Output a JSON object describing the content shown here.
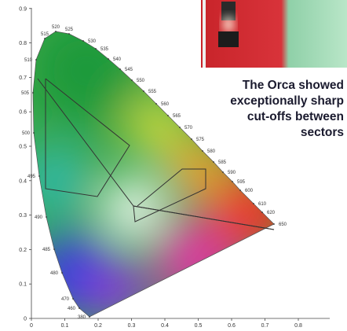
{
  "diagram": {
    "caption_lines": [
      "The Orca showed",
      "exceptionally sharp",
      "cut-offs between",
      "sectors"
    ],
    "x_ticks": [
      "0",
      "0.1",
      "0.2",
      "0.3",
      "0.4",
      "0.5",
      "0.6",
      "0.7",
      "0.8"
    ],
    "y_ticks": [
      "0",
      "0.1",
      "0.2",
      "0.3",
      "0.4",
      "0.5",
      "0.6",
      "0.7",
      "0.8",
      "0.9"
    ],
    "wavelengths": [
      "380",
      "460",
      "470",
      "480",
      "485",
      "490",
      "495",
      "500",
      "505",
      "510",
      "515",
      "520",
      "525",
      "530",
      "535",
      "540",
      "545",
      "550",
      "555",
      "560",
      "565",
      "570",
      "575",
      "580",
      "585",
      "590",
      "595",
      "600",
      "610",
      "620",
      "650"
    ]
  }
}
